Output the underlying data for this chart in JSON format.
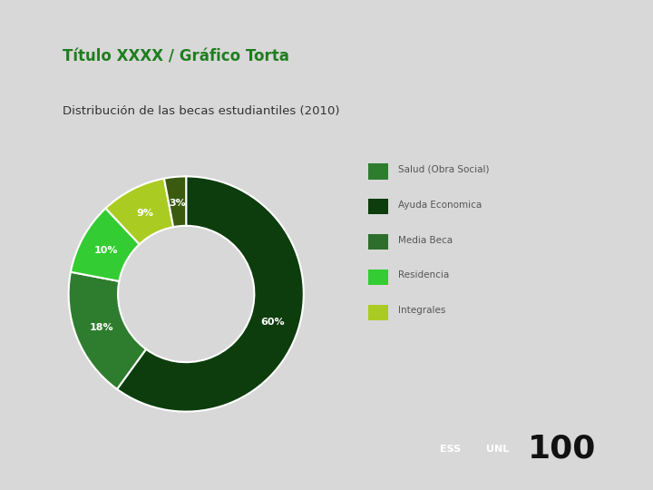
{
  "title": "Título XXXX / Gráfico Torta",
  "subtitle": "Distribución de las becas estudiantiles (2010)",
  "title_color": "#1e7e1e",
  "subtitle_color": "#333333",
  "slices": [
    60,
    18,
    10,
    9,
    3
  ],
  "labels": [
    "60%",
    "18%",
    "10%",
    "9%",
    "3%"
  ],
  "slice_colors": [
    "#0d3d0d",
    "#2e7d2e",
    "#33cc33",
    "#aacc22",
    "#3a5a10"
  ],
  "legend_labels": [
    "Salud (Obra Social)",
    "Ayuda Economica",
    "Media Beca",
    "Residencia",
    "Integrales"
  ],
  "legend_colors": [
    "#2e7d2e",
    "#0d3d0d",
    "#2d6e2d",
    "#33cc33",
    "#aacc22"
  ],
  "bg_color": "#d8d8d8",
  "card_color": "#ffffff",
  "donut_width": 0.42,
  "label_fontsize": 8,
  "title_fontsize": 12,
  "subtitle_fontsize": 9.5,
  "legend_fontsize": 7.5,
  "footer_bg1": "#1e7e1e",
  "footer_bg2": "#333333",
  "footer_text1": "ESS",
  "footer_text2": "UNL",
  "footer_text3": "100"
}
